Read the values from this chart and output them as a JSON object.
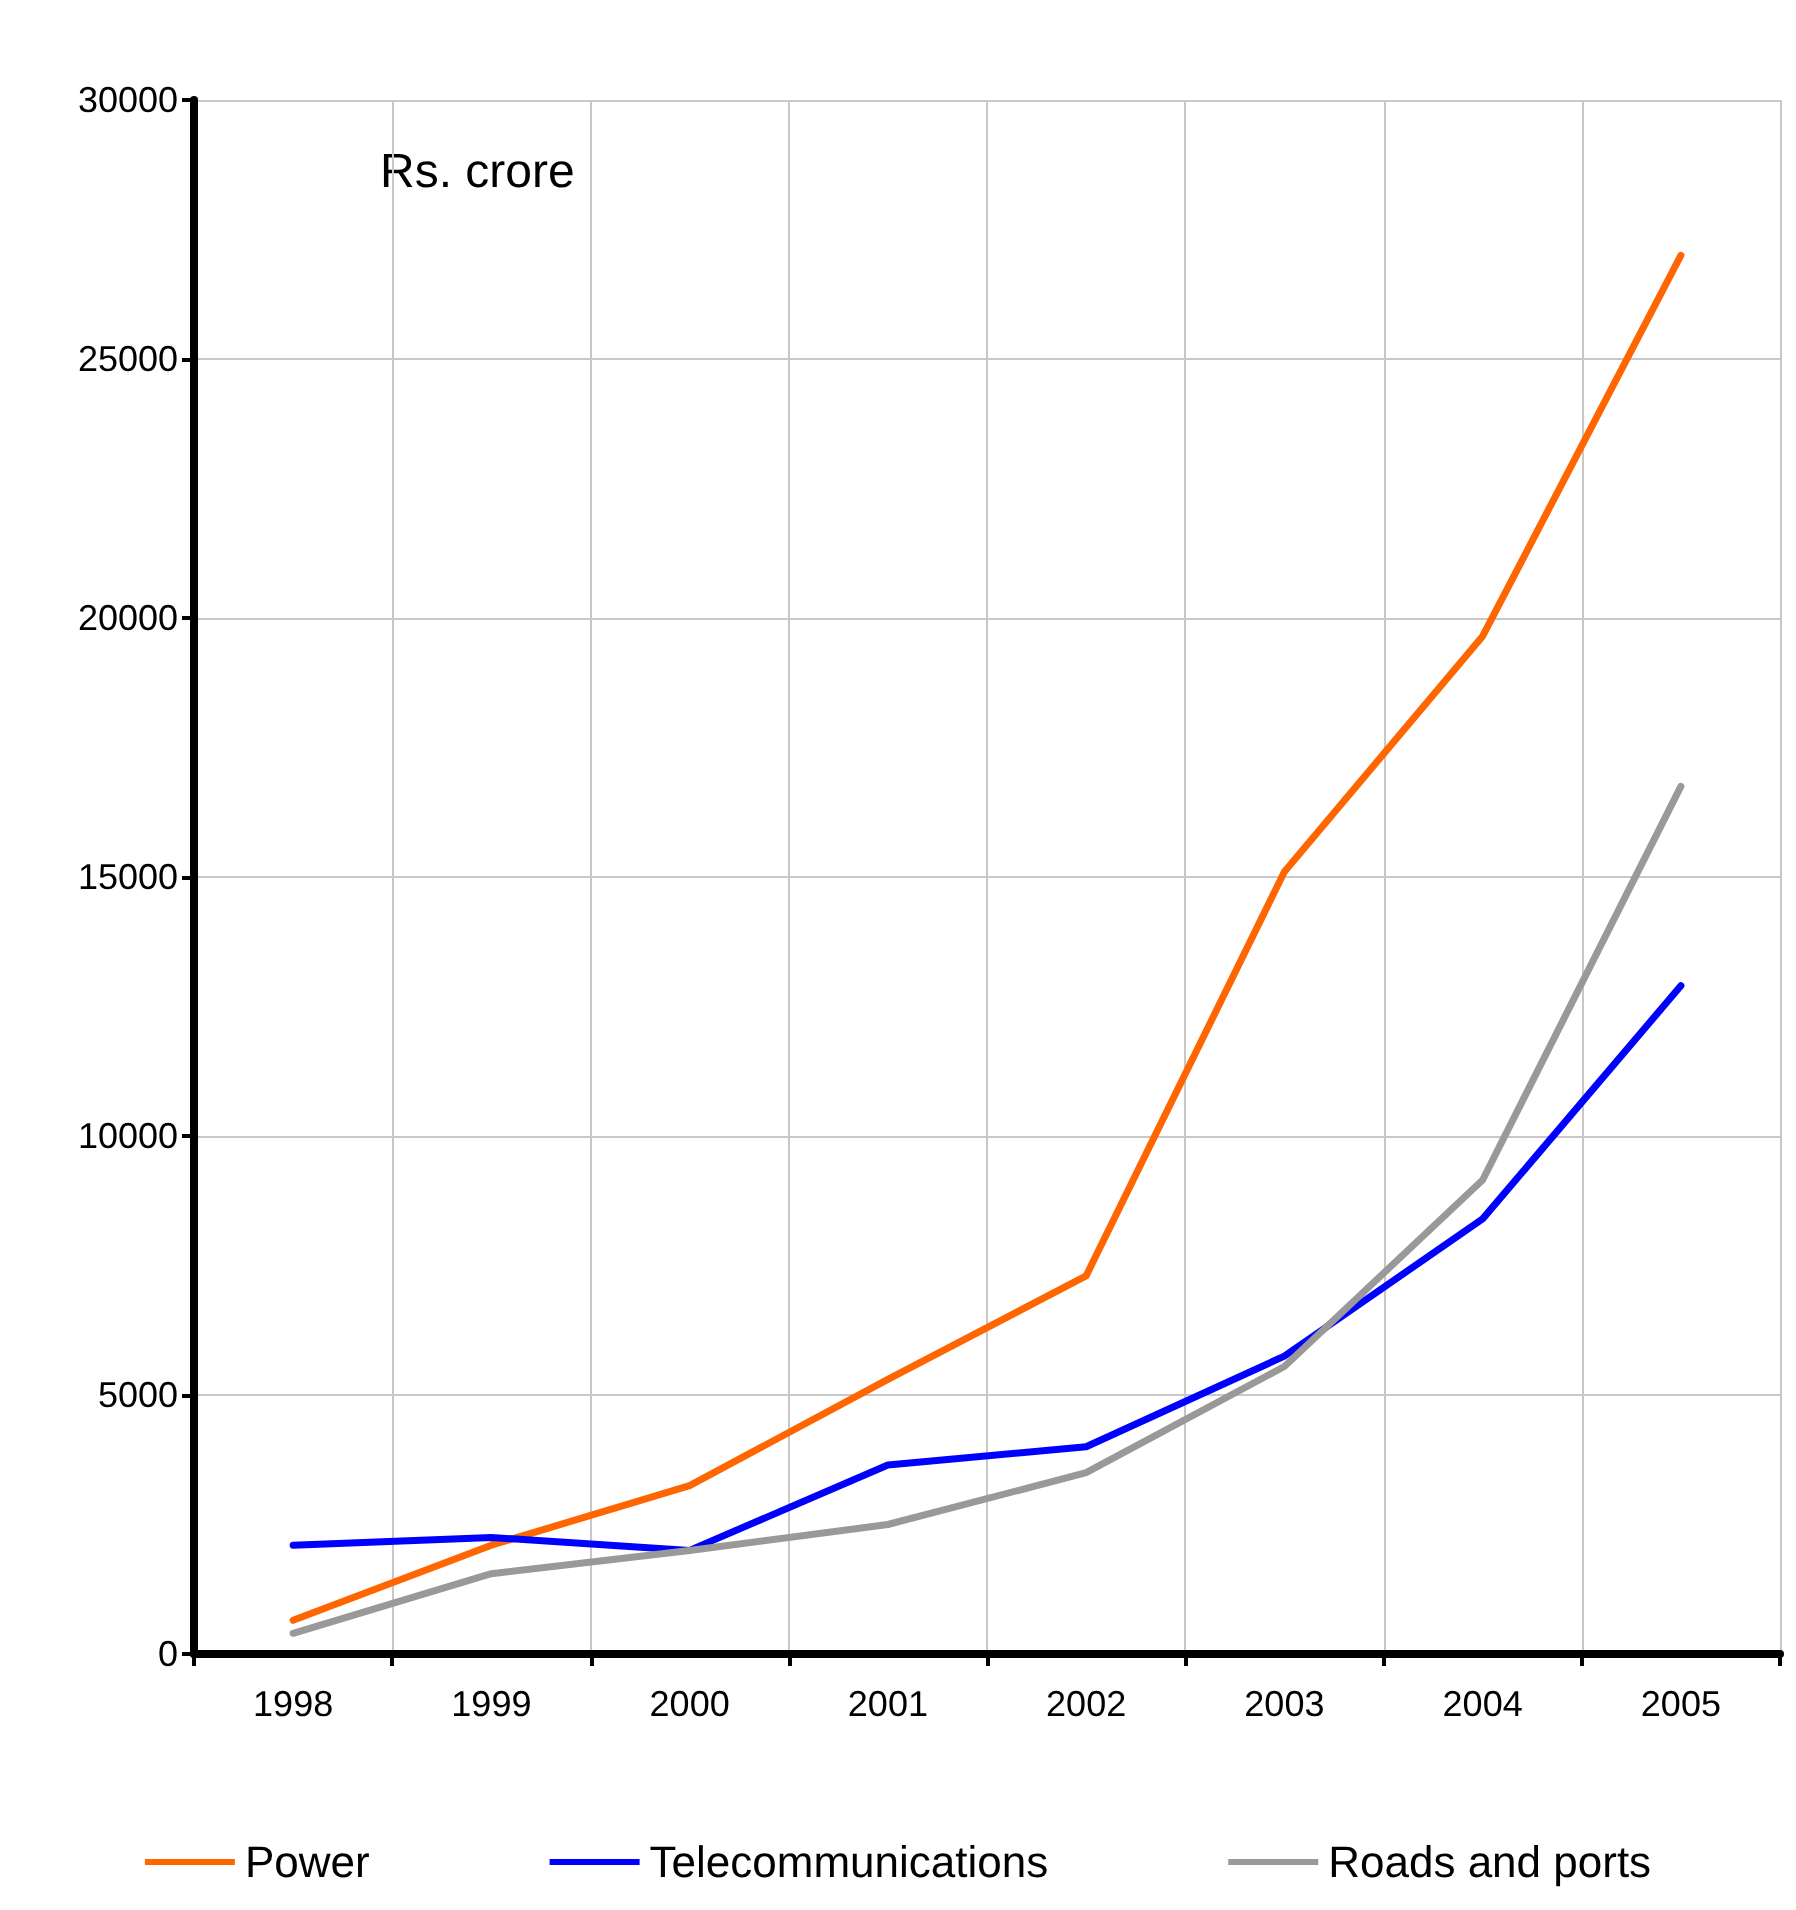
{
  "chart_data": {
    "type": "line",
    "ylabel": "Rs. crore",
    "categories": [
      "1998",
      "1999",
      "2000",
      "2001",
      "2002",
      "2003",
      "2004",
      "2005"
    ],
    "series": [
      {
        "name": "Power",
        "color": "#ff6600",
        "values": [
          650,
          2100,
          3250,
          5300,
          7300,
          15100,
          19650,
          27000
        ]
      },
      {
        "name": "Telecommunications",
        "color": "#0000ff",
        "values": [
          2100,
          2250,
          2000,
          3650,
          4000,
          5750,
          8400,
          12900
        ]
      },
      {
        "name": "Roads and ports",
        "color": "#999999",
        "values": [
          400,
          1550,
          2000,
          2500,
          3500,
          5550,
          9150,
          16750
        ]
      }
    ],
    "ylim": [
      0,
      30000
    ],
    "yticks": [
      0,
      5000,
      10000,
      15000,
      20000,
      25000,
      30000
    ],
    "grid": true,
    "legend": "bottom",
    "marker": "none",
    "line_style": "solid"
  }
}
